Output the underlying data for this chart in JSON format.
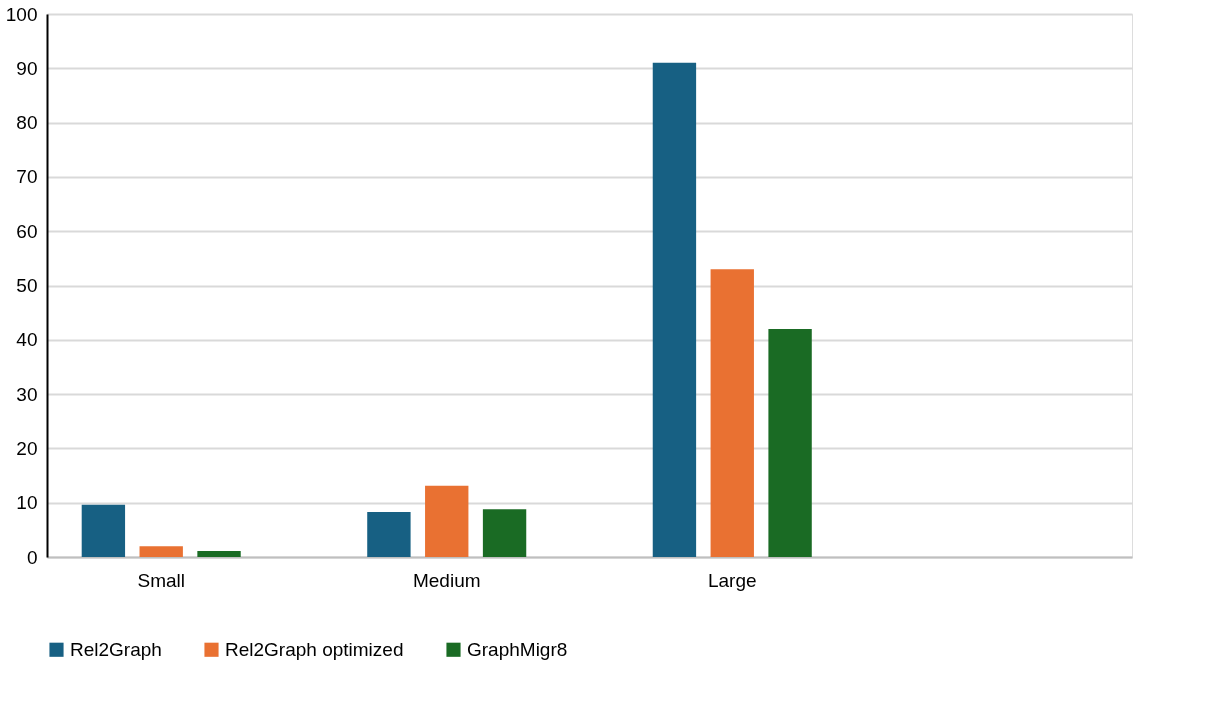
{
  "chart_data": {
    "type": "bar",
    "categories": [
      "Small",
      "Medium",
      "Large",
      null
    ],
    "series": [
      {
        "name": "Rel2Graph",
        "color": "#176083",
        "values": [
          9.6,
          8.3,
          91,
          null
        ]
      },
      {
        "name": "Rel2Graph optimized",
        "color": "#e97132",
        "values": [
          2.0,
          13.1,
          53,
          null
        ]
      },
      {
        "name": "GraphMigr8",
        "color": "#1a6b24",
        "values": [
          1.1,
          8.8,
          42,
          null
        ]
      }
    ],
    "ylim": [
      0,
      100
    ],
    "yticks": [
      0,
      10,
      20,
      30,
      40,
      50,
      60,
      70,
      80,
      90,
      100
    ],
    "grid": "y",
    "legend": "bottom"
  }
}
